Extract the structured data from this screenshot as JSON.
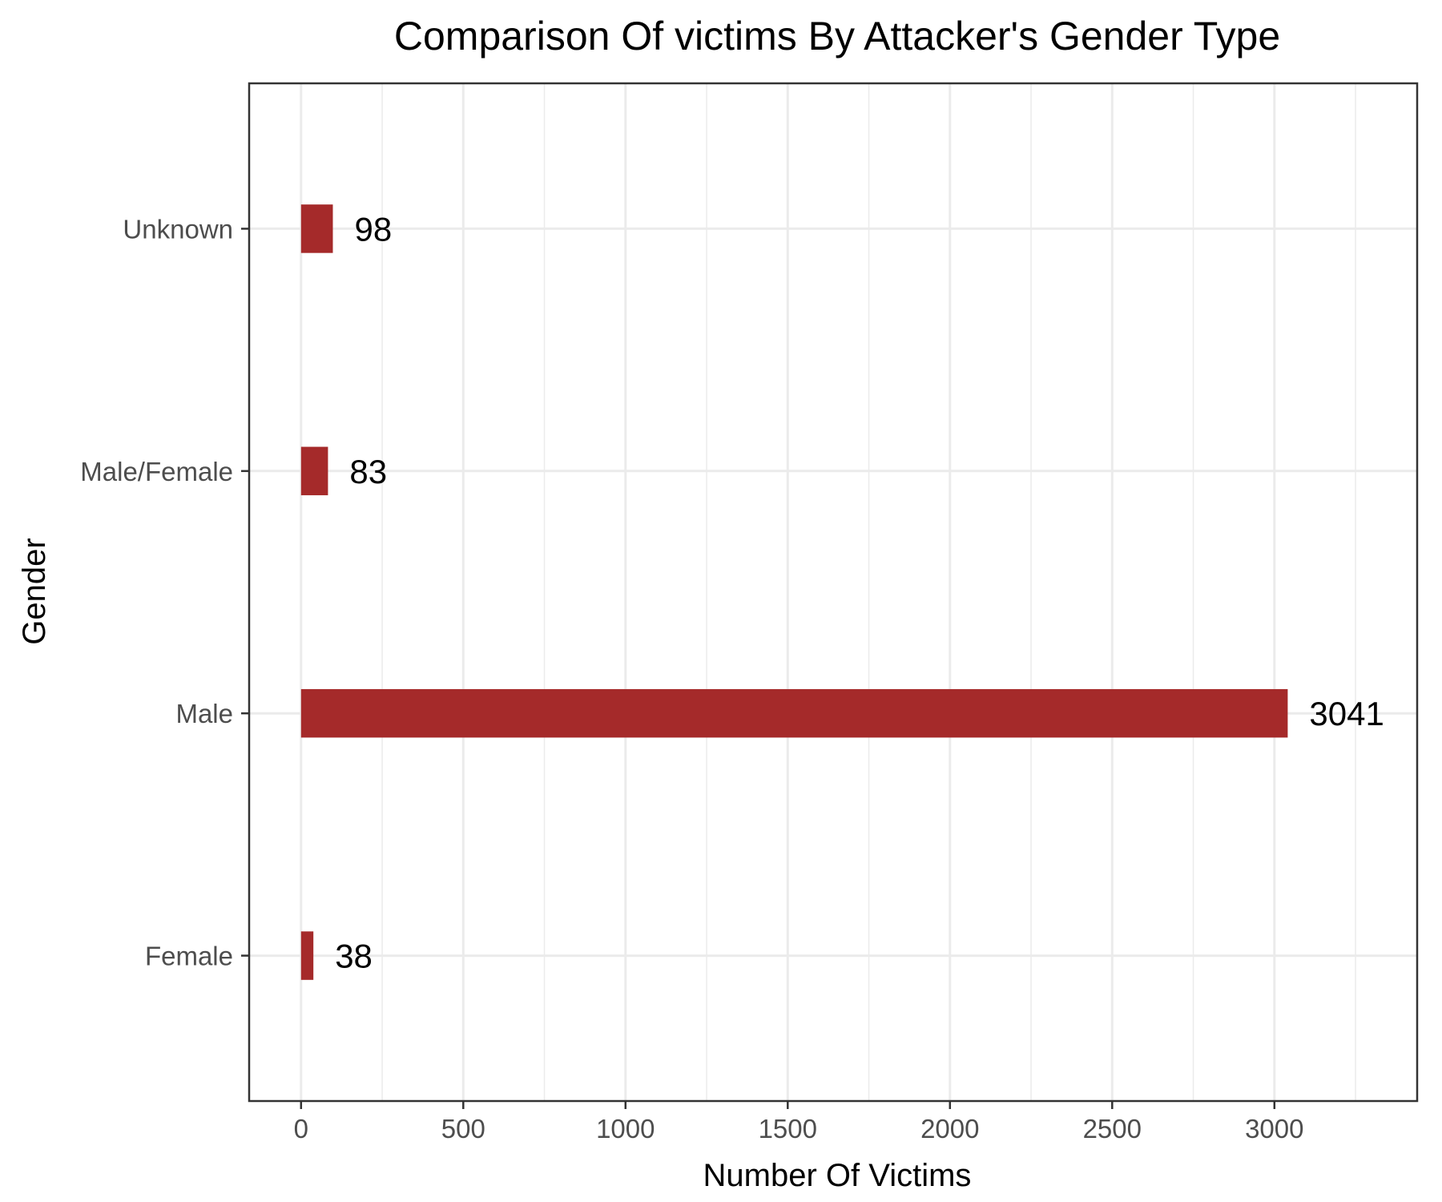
{
  "chart_data": {
    "type": "bar",
    "orientation": "horizontal",
    "title": "Comparison Of victims By Attacker's Gender Type",
    "xlabel": "Number Of Victims",
    "ylabel": "Gender",
    "categories": [
      "Female",
      "Male",
      "Male/Female",
      "Unknown"
    ],
    "values": [
      38,
      3041,
      83,
      98
    ],
    "data_labels": [
      "38",
      "3041",
      "83",
      "98"
    ],
    "x_ticks": [
      0,
      500,
      1000,
      1500,
      2000,
      2500,
      3000
    ],
    "x_tick_labels": [
      "0",
      "500",
      "1000",
      "1500",
      "2000",
      "2500",
      "3000"
    ],
    "xlim": [
      -160,
      3440
    ],
    "bar_color": "#a52a2a",
    "grid": true,
    "legend": "none"
  }
}
